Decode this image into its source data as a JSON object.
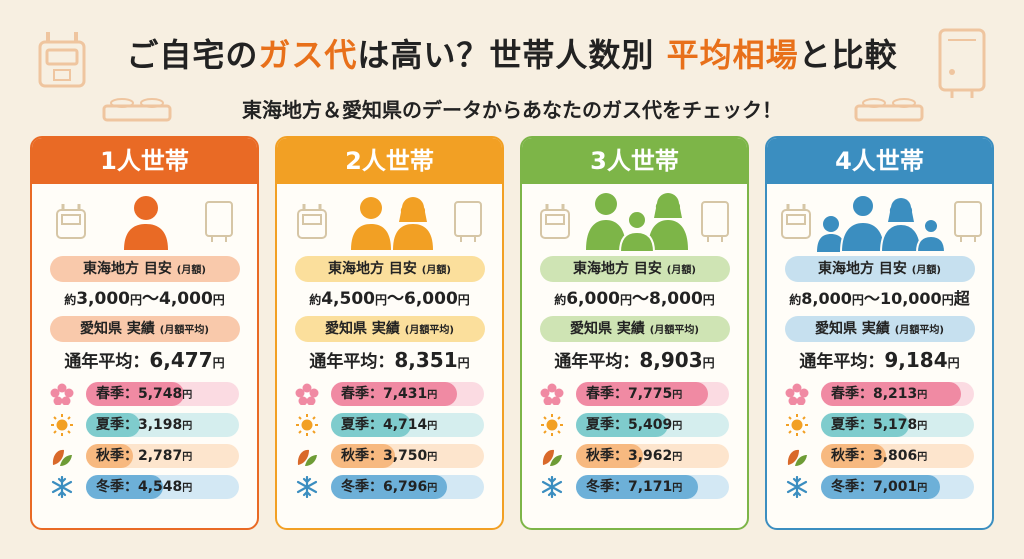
{
  "title": {
    "part1": "ご自宅の",
    "highlight1": "ガス代",
    "part2": "は高い？世帯人数別 ",
    "highlight2": "平均相場",
    "part3": "と比較"
  },
  "subtitle": "東海地方＆愛知県のデータからあなたのガス代をチェック！",
  "colors": {
    "card1": "#e96a25",
    "card2": "#f2a024",
    "card3": "#7db548",
    "card4": "#3b8ec0"
  },
  "cards": [
    {
      "header": "1人世帯",
      "household_size": 1,
      "region_label": "東海地方 目安",
      "region_unit": "(月額)",
      "range_prefix": "約",
      "range_low": "3,000",
      "range_unit1": "円",
      "range_sep": "〜",
      "range_high": "4,000",
      "range_unit2": "円",
      "range_suffix": "",
      "pref_label": "愛知県 実績",
      "pref_unit": "(月額平均)",
      "avg_label": "通年平均：",
      "avg_value": "6,477",
      "avg_unit": "円",
      "seasons": [
        {
          "label": "春季：",
          "value": "5,748",
          "unit": "円",
          "amount": 5748
        },
        {
          "label": "夏季：",
          "value": "3,198",
          "unit": "円",
          "amount": 3198
        },
        {
          "label": "秋季：",
          "value": "2,787",
          "unit": "円",
          "amount": 2787
        },
        {
          "label": "冬季：",
          "value": "4,548",
          "unit": "円",
          "amount": 4548
        }
      ]
    },
    {
      "header": "2人世帯",
      "household_size": 2,
      "region_label": "東海地方 目安",
      "region_unit": "(月額)",
      "range_prefix": "約",
      "range_low": "4,500",
      "range_unit1": "円",
      "range_sep": "〜",
      "range_high": "6,000",
      "range_unit2": "円",
      "range_suffix": "",
      "pref_label": "愛知県 実績",
      "pref_unit": "(月額平均)",
      "avg_label": "通年平均：",
      "avg_value": "8,351",
      "avg_unit": "円",
      "seasons": [
        {
          "label": "春季：",
          "value": "7,431",
          "unit": "円",
          "amount": 7431
        },
        {
          "label": "夏季：",
          "value": "4,714",
          "unit": "円",
          "amount": 4714
        },
        {
          "label": "秋季：",
          "value": "3,750",
          "unit": "円",
          "amount": 3750
        },
        {
          "label": "冬季：",
          "value": "6,796",
          "unit": "円",
          "amount": 6796
        }
      ]
    },
    {
      "header": "3人世帯",
      "household_size": 3,
      "region_label": "東海地方 目安",
      "region_unit": "(月額)",
      "range_prefix": "約",
      "range_low": "6,000",
      "range_unit1": "円",
      "range_sep": "〜",
      "range_high": "8,000",
      "range_unit2": "円",
      "range_suffix": "",
      "pref_label": "愛知県 実績",
      "pref_unit": "(月額平均)",
      "avg_label": "通年平均：",
      "avg_value": "8,903",
      "avg_unit": "円",
      "seasons": [
        {
          "label": "春季：",
          "value": "7,775",
          "unit": "円",
          "amount": 7775
        },
        {
          "label": "夏季：",
          "value": "5,409",
          "unit": "円",
          "amount": 5409
        },
        {
          "label": "秋季：",
          "value": "3,962",
          "unit": "円",
          "amount": 3962
        },
        {
          "label": "冬季：",
          "value": "7,171",
          "unit": "円",
          "amount": 7171
        }
      ]
    },
    {
      "header": "4人世帯",
      "household_size": 4,
      "region_label": "東海地方 目安",
      "region_unit": "(月額)",
      "range_prefix": "約",
      "range_low": "8,000",
      "range_unit1": "円",
      "range_sep": "〜",
      "range_high": "10,000",
      "range_unit2": "円",
      "range_suffix": "超",
      "pref_label": "愛知県 実績",
      "pref_unit": "(月額平均)",
      "avg_label": "通年平均：",
      "avg_value": "9,184",
      "avg_unit": "円",
      "seasons": [
        {
          "label": "春季：",
          "value": "8,213",
          "unit": "円",
          "amount": 8213
        },
        {
          "label": "夏季：",
          "value": "5,178",
          "unit": "円",
          "amount": 5178
        },
        {
          "label": "秋季：",
          "value": "3,806",
          "unit": "円",
          "amount": 3806
        },
        {
          "label": "冬季：",
          "value": "7,001",
          "unit": "円",
          "amount": 7001
        }
      ]
    }
  ],
  "season_bar_max": 9000,
  "season_icons": [
    "sakura-icon",
    "sun-icon",
    "leaf-icon",
    "snowflake-icon"
  ]
}
